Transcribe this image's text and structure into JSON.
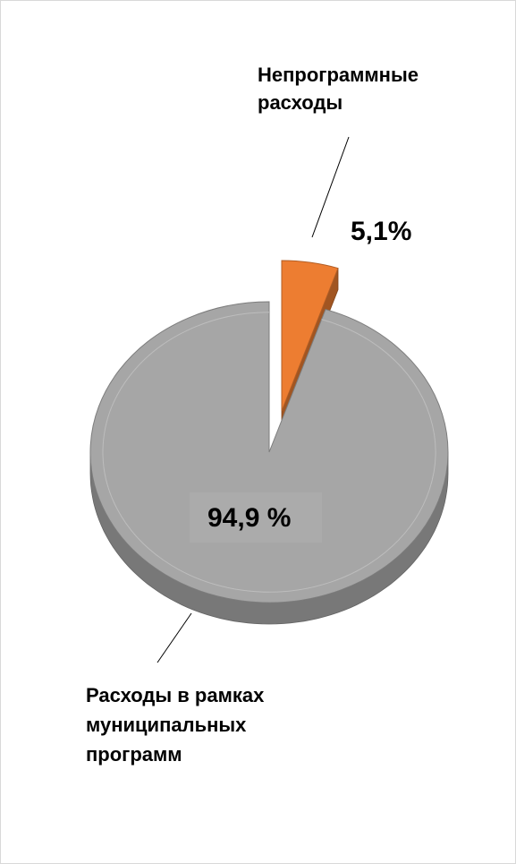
{
  "chart_data": {
    "type": "pie",
    "style": "3d-exploded",
    "slices": [
      {
        "label": "Непрограммные расходы",
        "label_lines": [
          "Непрограммные",
          "расходы"
        ],
        "value_label": "5,1%",
        "value": 5.1,
        "color": "#ed7d31"
      },
      {
        "label": "Расходы в рамках муниципальных программ",
        "label_lines": [
          "Расходы в рамках",
          "муниципальных",
          "программ"
        ],
        "value_label": "94,9 %",
        "value": 94.9,
        "color": "#a6a6a6"
      }
    ]
  }
}
